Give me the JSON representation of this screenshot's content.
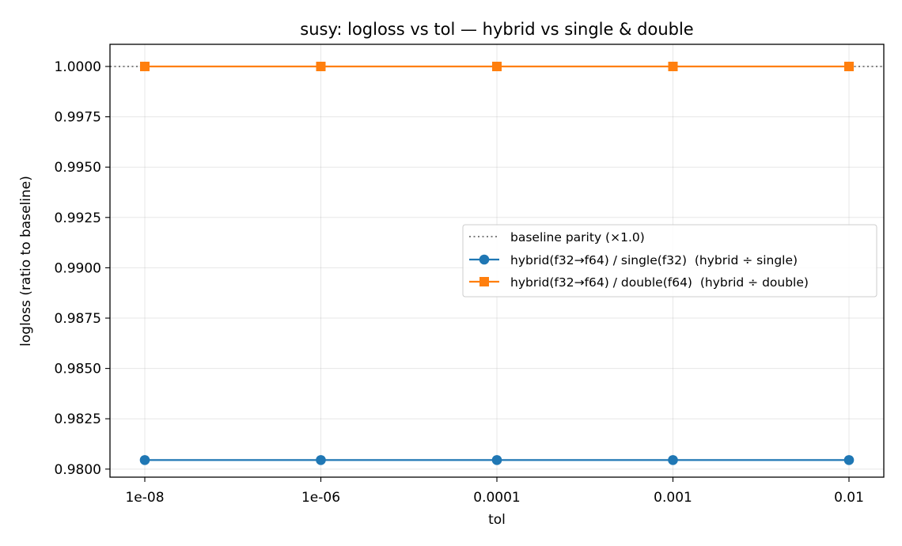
{
  "chart_data": {
    "type": "line",
    "title": "susy: logloss vs tol — hybrid vs single & double",
    "xlabel": "tol",
    "ylabel": "logloss (ratio to baseline)",
    "categories": [
      "1e-08",
      "1e-06",
      "0.0001",
      "0.001",
      "0.01"
    ],
    "ylim": [
      0.9796,
      1.0011
    ],
    "yticks": [
      "0.9800",
      "0.9825",
      "0.9850",
      "0.9875",
      "0.9900",
      "0.9925",
      "0.9950",
      "0.9975",
      "1.0000"
    ],
    "grid": true,
    "legend_position": "center-right",
    "baseline": {
      "name": "baseline parity (×1.0)",
      "value": 1.0,
      "color": "#808080",
      "style": "dotted"
    },
    "series": [
      {
        "name": "hybrid(f32→f64) / single(f32)  (hybrid ÷ single)",
        "values": [
          0.98045,
          0.98045,
          0.98045,
          0.98045,
          0.98045
        ],
        "color": "#1f77b4",
        "marker": "circle"
      },
      {
        "name": "hybrid(f32→f64) / double(f64)  (hybrid ÷ double)",
        "values": [
          1.0,
          1.0,
          1.0,
          1.0,
          1.0
        ],
        "color": "#ff7f0e",
        "marker": "square"
      }
    ]
  }
}
